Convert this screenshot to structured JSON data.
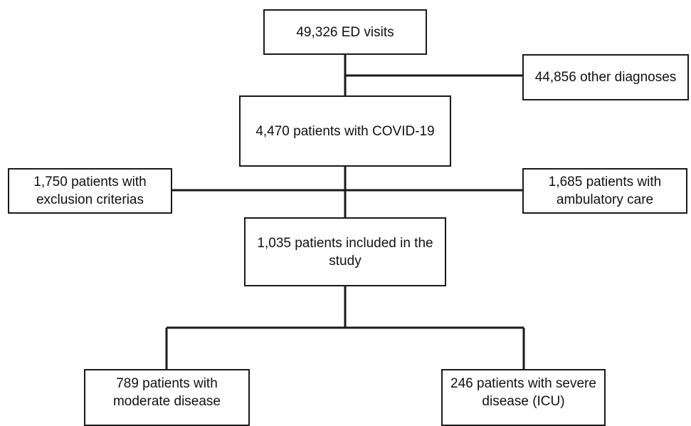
{
  "flowchart": {
    "ed_visits": "49,326 ED visits",
    "other_diagnoses": "44,856 other diagnoses",
    "covid_patients": "4,470 patients with COVID-19",
    "exclusion": [
      "1,750 patients with",
      "exclusion criterias"
    ],
    "ambulatory": [
      "1,685 patients with",
      "ambulatory care"
    ],
    "included": [
      "1,035 patients included in the",
      "study"
    ],
    "moderate": [
      "789 patients with",
      "moderate disease"
    ],
    "severe": [
      "246 patients with severe",
      "disease (ICU)"
    ]
  },
  "colors": {
    "line": "#1a1a1a",
    "box_border": "#1a1a1a",
    "background": "#ffffff",
    "text": "#111111"
  }
}
